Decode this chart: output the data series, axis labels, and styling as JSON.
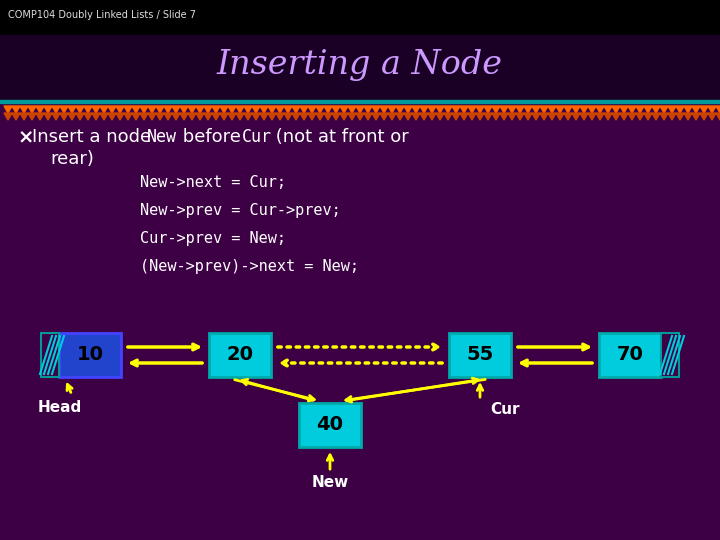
{
  "title": "Inserting a Node",
  "subtitle": "COMP104 Doubly Linked Lists / Slide 7",
  "bg_color": "#3D0045",
  "title_color": "#CC99FF",
  "bullet_text_color": "#FFFFFF",
  "code_color": "#FFFFFF",
  "node_color_blue": "#2244CC",
  "node_color_cyan": "#00CCDD",
  "arrow_color": "#FFFF00",
  "code_lines": [
    "New->next = Cur;",
    "New->prev = Cur->prev;",
    "Cur->prev = New;",
    "(New->prev)->next = New;"
  ],
  "node_labels": [
    "10",
    "20",
    "55",
    "70"
  ],
  "new_node_label": "40",
  "head_label": "Head",
  "cur_label": "Cur",
  "new_label": "New",
  "fig_width": 7.2,
  "fig_height": 5.4,
  "dpi": 100
}
